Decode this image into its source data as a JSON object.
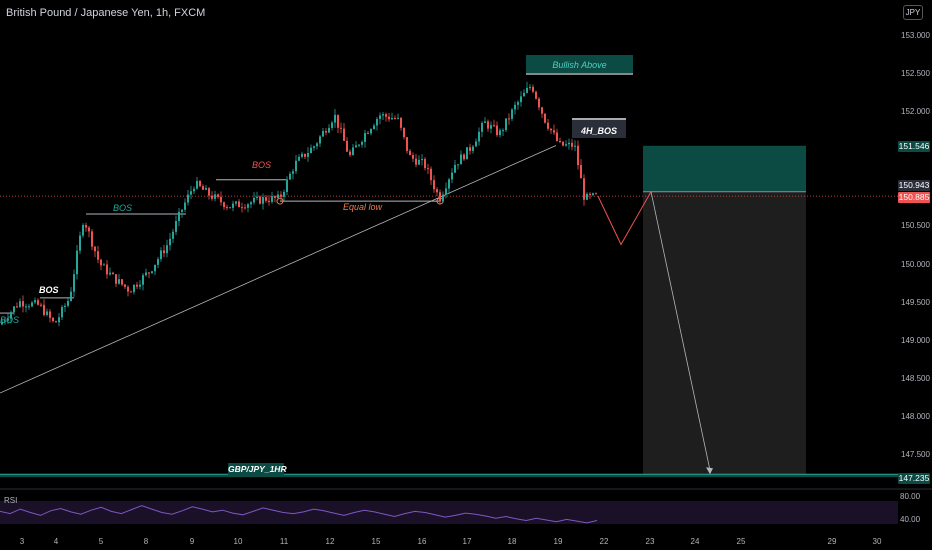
{
  "header": {
    "title": "British Pound / Japanese Yen, 1h, FXCM",
    "currency": "JPY"
  },
  "colors": {
    "background": "#000000",
    "bull": "#26a69a",
    "bear": "#ef5350",
    "target_zone": "#0c4a44",
    "stop_zone": "#1e1e1e",
    "rsi_line": "#7e57c2",
    "projection": "#ef5350",
    "structure": "#b2b5be"
  },
  "chart_data": {
    "type": "candlestick",
    "symbol": "GBPJPY",
    "timeframe": "1h",
    "ylim": [
      147.15,
      153.2
    ],
    "y_ticks": [
      "153.000",
      "152.500",
      "152.000",
      "151.500",
      "151.000",
      "150.500",
      "150.000",
      "149.500",
      "149.000",
      "148.500",
      "148.000",
      "147.500"
    ],
    "x_ticks": [
      "3",
      "4",
      "5",
      "8",
      "9",
      "10",
      "11",
      "12",
      "15",
      "16",
      "17",
      "18",
      "19",
      "22",
      "23",
      "24",
      "25",
      "29",
      "30"
    ],
    "price_anchors": [
      {
        "x": 0,
        "price": 149.2
      },
      {
        "x": 20,
        "price": 149.5
      },
      {
        "x": 40,
        "price": 149.45
      },
      {
        "x": 55,
        "price": 149.2
      },
      {
        "x": 70,
        "price": 149.55
      },
      {
        "x": 84,
        "price": 150.6
      },
      {
        "x": 100,
        "price": 150.0
      },
      {
        "x": 115,
        "price": 149.8
      },
      {
        "x": 130,
        "price": 149.65
      },
      {
        "x": 150,
        "price": 149.9
      },
      {
        "x": 168,
        "price": 150.25
      },
      {
        "x": 182,
        "price": 150.7
      },
      {
        "x": 195,
        "price": 151.05
      },
      {
        "x": 210,
        "price": 150.9
      },
      {
        "x": 230,
        "price": 150.75
      },
      {
        "x": 250,
        "price": 150.8
      },
      {
        "x": 265,
        "price": 150.85
      },
      {
        "x": 280,
        "price": 150.85
      },
      {
        "x": 295,
        "price": 151.3
      },
      {
        "x": 315,
        "price": 151.55
      },
      {
        "x": 335,
        "price": 151.95
      },
      {
        "x": 350,
        "price": 151.4
      },
      {
        "x": 365,
        "price": 151.7
      },
      {
        "x": 380,
        "price": 151.95
      },
      {
        "x": 398,
        "price": 151.9
      },
      {
        "x": 410,
        "price": 151.4
      },
      {
        "x": 425,
        "price": 151.3
      },
      {
        "x": 440,
        "price": 150.85
      },
      {
        "x": 455,
        "price": 151.3
      },
      {
        "x": 470,
        "price": 151.5
      },
      {
        "x": 485,
        "price": 151.85
      },
      {
        "x": 500,
        "price": 151.7
      },
      {
        "x": 515,
        "price": 152.05
      },
      {
        "x": 532,
        "price": 152.35
      },
      {
        "x": 545,
        "price": 151.9
      },
      {
        "x": 560,
        "price": 151.55
      },
      {
        "x": 575,
        "price": 151.55
      },
      {
        "x": 585,
        "price": 150.85
      },
      {
        "x": 598,
        "price": 150.885
      }
    ],
    "rsi": {
      "name": "RSI",
      "levels": [
        "80.00",
        "40.00"
      ],
      "values": [
        62,
        58,
        66,
        60,
        55,
        63,
        67,
        61,
        57,
        64,
        69,
        62,
        58,
        65,
        72,
        66,
        60,
        57,
        63,
        70,
        66,
        61,
        64,
        59,
        56,
        62,
        68,
        64,
        60,
        58,
        61,
        66,
        63,
        59,
        55,
        60,
        64,
        61,
        57,
        53,
        58,
        62,
        60,
        56,
        52,
        55,
        59,
        57,
        54,
        50,
        53,
        49,
        46,
        50,
        47,
        44,
        48,
        45,
        42,
        46
      ]
    },
    "current_price": "150.885",
    "entry_price": "150.943",
    "target_price": "151.546",
    "bottom_price": "147.235",
    "annotations": [
      "BOS",
      "BOS",
      "BOS",
      "BOS",
      "Equal low",
      "Bullish Above",
      "4H_BOS",
      "GBP/JPY_1HR"
    ]
  },
  "annotations": {
    "bos_1": "BOS",
    "bos_2": "BOS",
    "bos_3": "BOS",
    "bos_4": "BOS",
    "equal_low": "Equal low",
    "bullish_above": "Bullish Above",
    "h4_bos": "4H_BOS",
    "pair_label": "GBP/JPY_1HR"
  }
}
